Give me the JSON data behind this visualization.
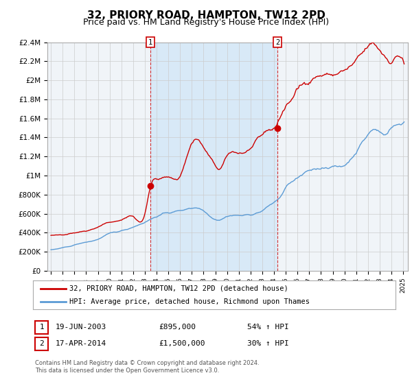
{
  "title": "32, PRIORY ROAD, HAMPTON, TW12 2PD",
  "subtitle": "Price paid vs. HM Land Registry's House Price Index (HPI)",
  "title_fontsize": 11,
  "subtitle_fontsize": 9,
  "marker1_x": 2003.47,
  "marker1_y": 895000,
  "marker2_x": 2014.29,
  "marker2_y": 1500000,
  "ylim": [
    0,
    2400000
  ],
  "yticks": [
    0,
    200000,
    400000,
    600000,
    800000,
    1000000,
    1200000,
    1400000,
    1600000,
    1800000,
    2000000,
    2200000,
    2400000
  ],
  "ytick_labels": [
    "£0",
    "£200K",
    "£400K",
    "£600K",
    "£800K",
    "£1M",
    "£1.2M",
    "£1.4M",
    "£1.6M",
    "£1.8M",
    "£2M",
    "£2.2M",
    "£2.4M"
  ],
  "xtick_years": [
    1995,
    1996,
    1997,
    1998,
    1999,
    2000,
    2001,
    2002,
    2003,
    2004,
    2005,
    2006,
    2007,
    2008,
    2009,
    2010,
    2011,
    2012,
    2013,
    2014,
    2015,
    2016,
    2017,
    2018,
    2019,
    2020,
    2021,
    2022,
    2023,
    2024,
    2025
  ],
  "red_color": "#cc0000",
  "blue_color": "#5b9bd5",
  "shade_color": "#d6e8f7",
  "grid_color": "#cccccc",
  "bg_color": "#f0f4f8",
  "legend_label_red": "32, PRIORY ROAD, HAMPTON, TW12 2PD (detached house)",
  "legend_label_blue": "HPI: Average price, detached house, Richmond upon Thames",
  "annotation1_date": "19-JUN-2003",
  "annotation1_price": "£895,000",
  "annotation1_hpi": "54% ↑ HPI",
  "annotation2_date": "17-APR-2014",
  "annotation2_price": "£1,500,000",
  "annotation2_hpi": "30% ↑ HPI",
  "footer": "Contains HM Land Registry data © Crown copyright and database right 2024.\nThis data is licensed under the Open Government Licence v3.0."
}
